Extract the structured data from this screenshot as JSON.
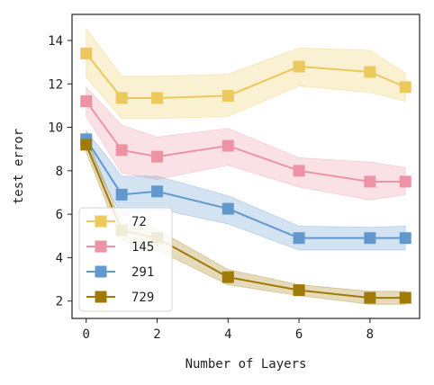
{
  "chart_data": {
    "type": "line",
    "xlabel": "Number of Layers",
    "ylabel": "test error",
    "xlim": [
      -0.4,
      9.4
    ],
    "ylim": [
      1.2,
      15.2
    ],
    "x_ticks": [
      0,
      2,
      4,
      6,
      8
    ],
    "y_ticks": [
      2,
      4,
      6,
      8,
      10,
      12,
      14
    ],
    "grid": false,
    "legend_position": "lower-left",
    "x": [
      0,
      1,
      2,
      4,
      6,
      8,
      9
    ],
    "series": [
      {
        "name": "72",
        "color": "#EDC85C",
        "values": [
          13.4,
          11.35,
          11.35,
          11.45,
          12.8,
          12.55,
          11.85
        ],
        "lower": [
          12.3,
          10.4,
          10.4,
          10.5,
          11.9,
          11.6,
          11.2
        ],
        "upper": [
          14.55,
          12.35,
          12.35,
          12.45,
          13.65,
          13.55,
          12.5
        ]
      },
      {
        "name": "145",
        "color": "#EE93A6",
        "values": [
          11.2,
          8.95,
          8.65,
          9.15,
          8.0,
          7.5,
          7.5
        ],
        "lower": [
          10.5,
          7.9,
          7.6,
          8.25,
          7.25,
          6.65,
          6.9
        ],
        "upper": [
          11.85,
          10.1,
          9.55,
          9.95,
          8.6,
          8.4,
          8.15
        ]
      },
      {
        "name": "291",
        "color": "#6199CF",
        "values": [
          9.45,
          6.9,
          7.05,
          6.25,
          4.9,
          4.9,
          4.9
        ],
        "lower": [
          9.05,
          5.9,
          6.25,
          5.55,
          4.35,
          4.35,
          4.35
        ],
        "upper": [
          9.85,
          7.75,
          7.75,
          6.85,
          5.45,
          5.4,
          5.45
        ]
      },
      {
        "name": "729",
        "color": "#A07A06",
        "values": [
          9.2,
          5.25,
          4.9,
          3.1,
          2.5,
          2.15,
          2.15
        ],
        "lower": [
          8.85,
          4.75,
          4.35,
          2.75,
          2.25,
          1.85,
          1.85
        ],
        "upper": [
          9.55,
          5.6,
          5.3,
          3.45,
          2.75,
          2.45,
          2.45
        ]
      }
    ]
  }
}
